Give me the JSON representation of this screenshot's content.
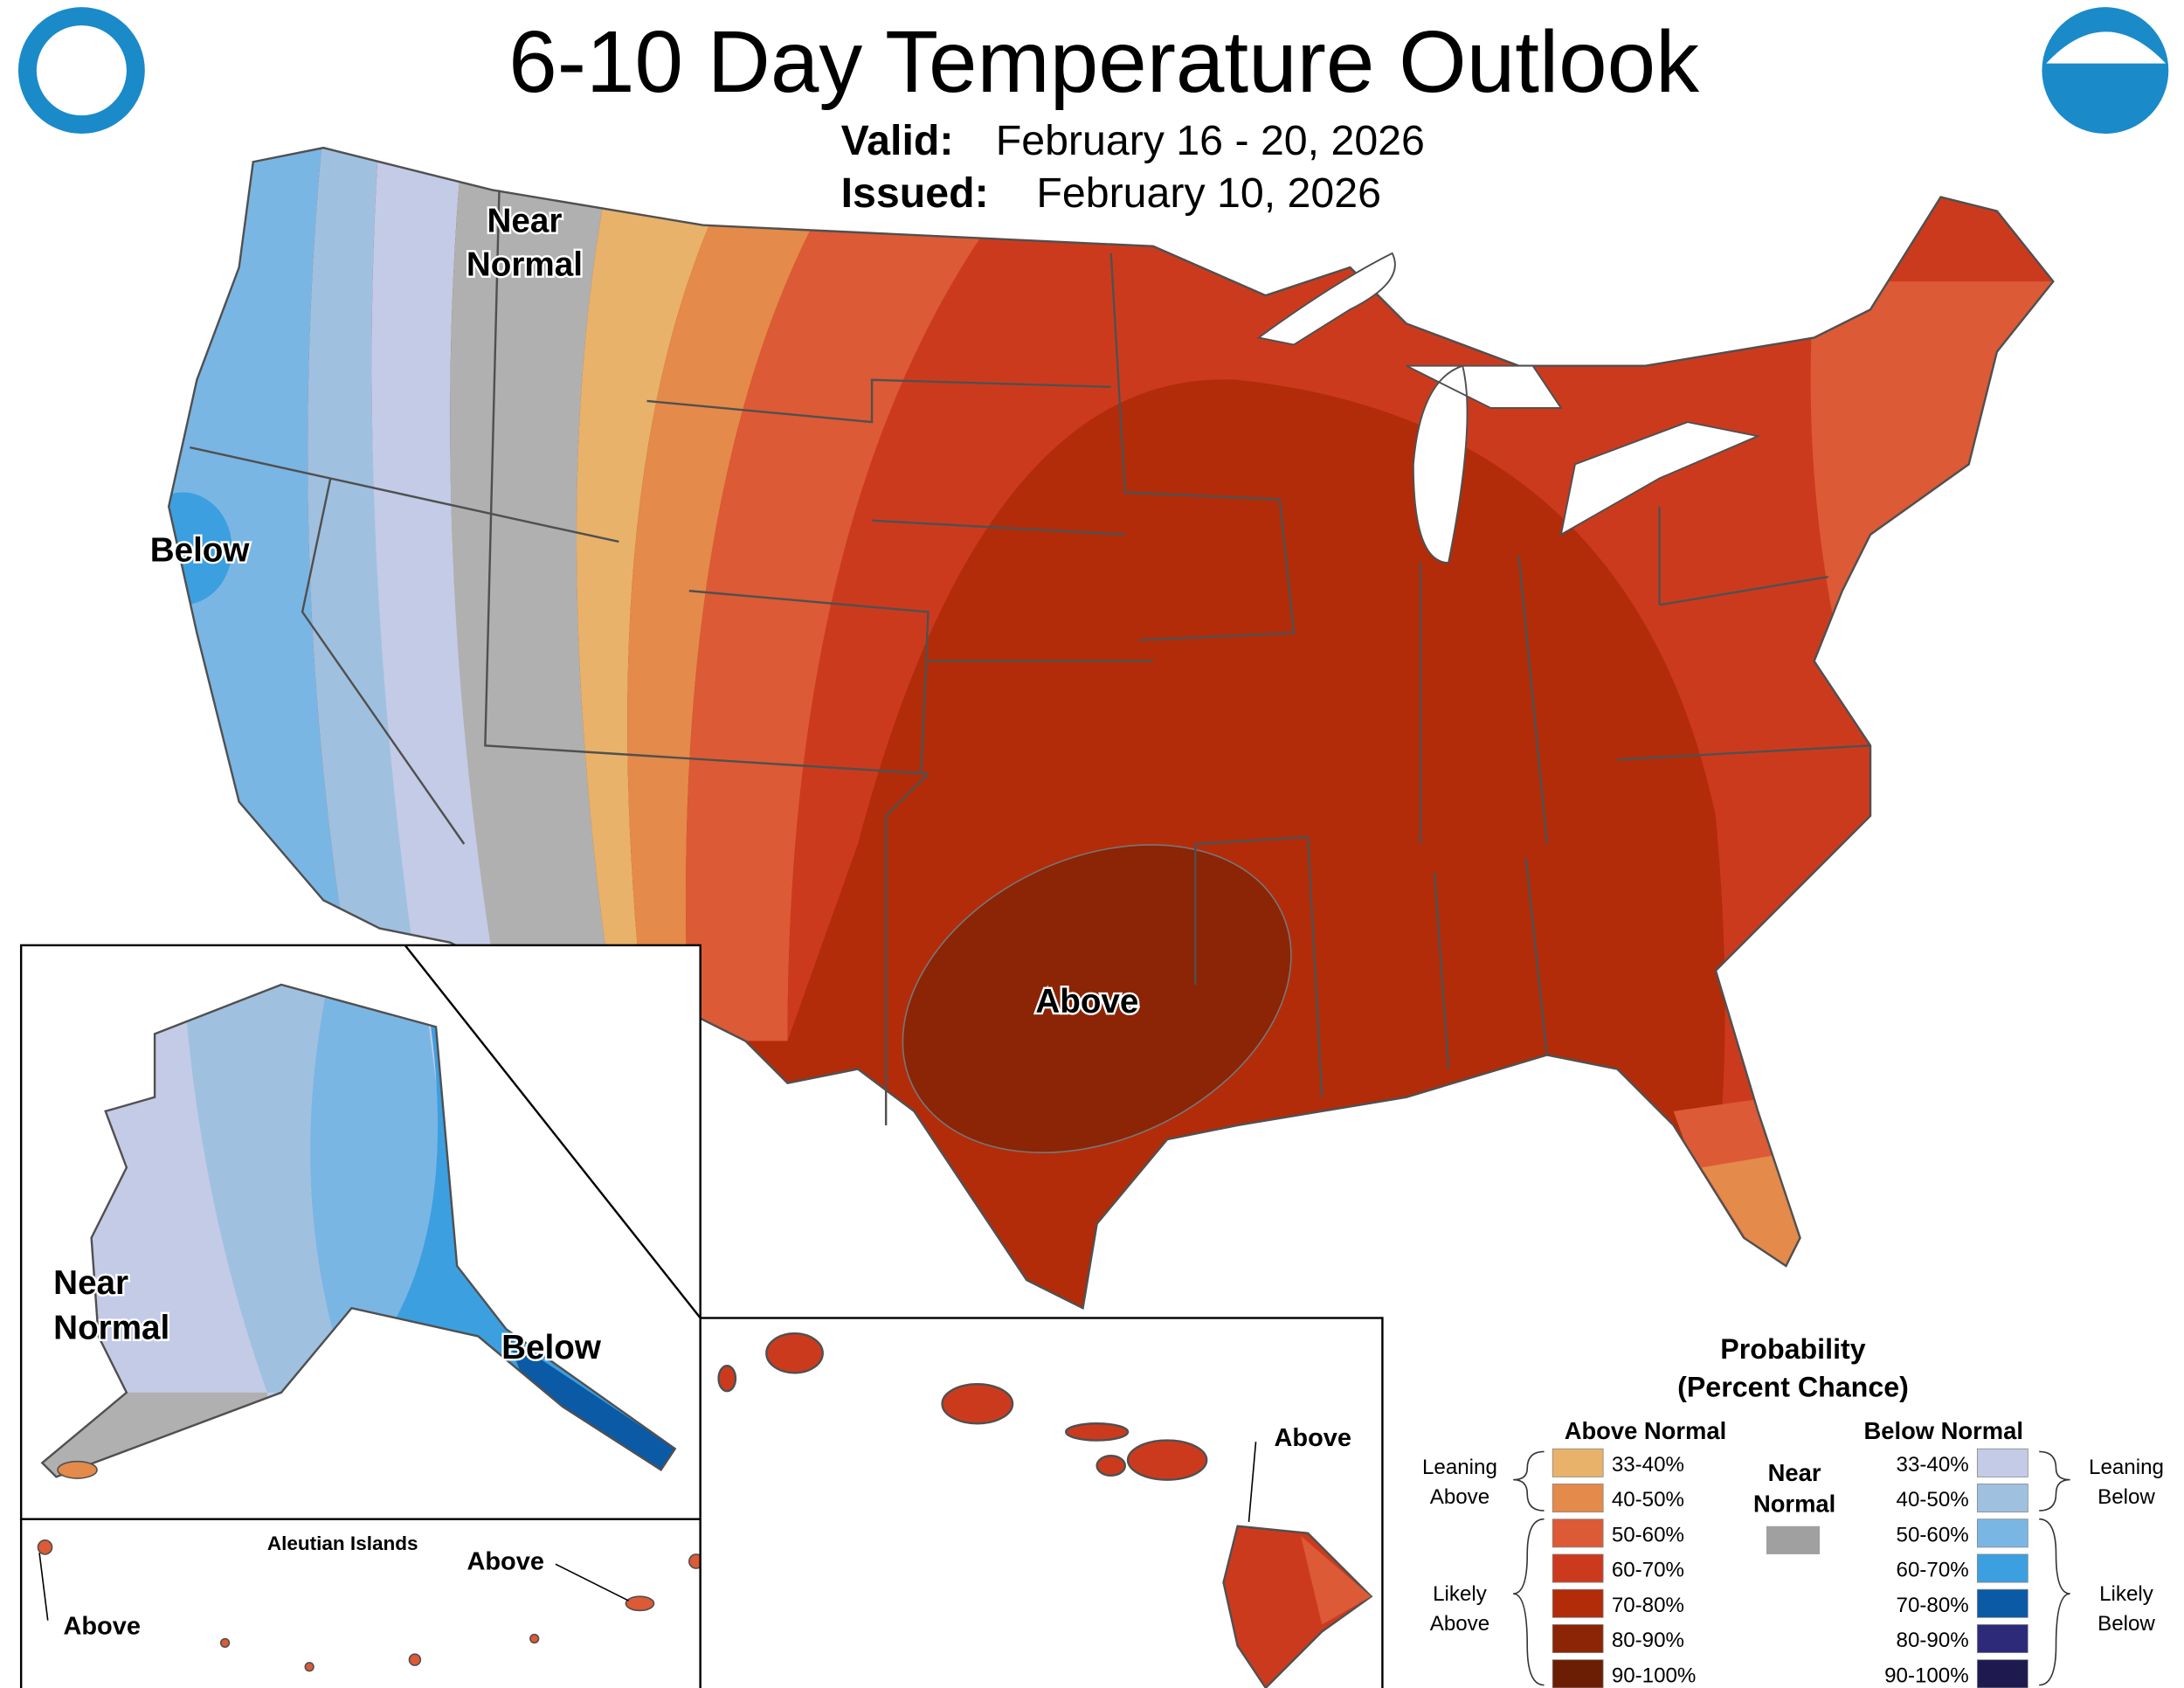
{
  "title": "6-10 Day Temperature Outlook",
  "valid": {
    "label": "Valid:",
    "value": "February 16 - 20, 2026"
  },
  "issued": {
    "label": "Issued:",
    "value": "February 10, 2026"
  },
  "conus_labels": [
    {
      "lines": [
        "Near",
        "Normal"
      ]
    },
    {
      "lines": [
        "Below"
      ]
    },
    {
      "lines": [
        "Above"
      ]
    }
  ],
  "alaska_labels": [
    {
      "lines": [
        "Near",
        "Normal"
      ]
    },
    {
      "lines": [
        "Below"
      ]
    }
  ],
  "aleutian": {
    "title": "Aleutian Islands",
    "labels": [
      "Above",
      "Above"
    ]
  },
  "hawaii_label": "Above",
  "legend": {
    "title": [
      "Probability",
      "(Percent Chance)"
    ],
    "above_heading": "Above Normal",
    "below_heading": "Below Normal",
    "near": {
      "lines": [
        "Near",
        "Normal"
      ],
      "color": "#a0a0a0"
    },
    "above": [
      {
        "label": "33-40%",
        "color": "#e8b26a"
      },
      {
        "label": "40-50%",
        "color": "#e48a4a"
      },
      {
        "label": "50-60%",
        "color": "#dc5a35"
      },
      {
        "label": "60-70%",
        "color": "#cc3a1e"
      },
      {
        "label": "70-80%",
        "color": "#b22c0a"
      },
      {
        "label": "80-90%",
        "color": "#8c2406"
      },
      {
        "label": "90-100%",
        "color": "#6b1e04"
      }
    ],
    "below": [
      {
        "label": "33-40%",
        "color": "#c3cbe6"
      },
      {
        "label": "40-50%",
        "color": "#a0c0e0"
      },
      {
        "label": "50-60%",
        "color": "#7ab6e4"
      },
      {
        "label": "60-70%",
        "color": "#3c9fe0"
      },
      {
        "label": "70-80%",
        "color": "#0a5aa6"
      },
      {
        "label": "80-90%",
        "color": "#2e2a7a"
      },
      {
        "label": "90-100%",
        "color": "#1e1a50"
      }
    ],
    "groups": {
      "leaning_above": [
        "Leaning",
        "Above"
      ],
      "likely_above": [
        "Likely",
        "Above"
      ],
      "leaning_below": [
        "Leaning",
        "Below"
      ],
      "likely_below": [
        "Likely",
        "Below"
      ]
    }
  }
}
